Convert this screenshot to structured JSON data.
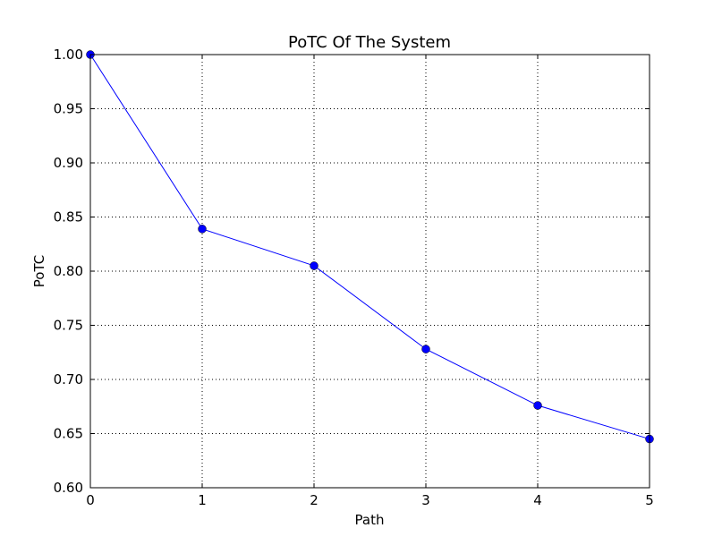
{
  "chart_data": {
    "type": "line",
    "title": "PoTC Of The System",
    "xlabel": "Path",
    "ylabel": "PoTC",
    "xlim": [
      0,
      5
    ],
    "ylim": [
      0.6,
      1.0
    ],
    "x_ticks": [
      "0",
      "1",
      "2",
      "3",
      "4",
      "5"
    ],
    "y_ticks": [
      "0.60",
      "0.65",
      "0.70",
      "0.75",
      "0.80",
      "0.85",
      "0.90",
      "0.95",
      "1.00"
    ],
    "grid": true,
    "legend": "none",
    "series": [
      {
        "x": [
          0,
          1,
          2,
          3,
          4,
          5
        ],
        "values": [
          1.0,
          0.839,
          0.805,
          0.728,
          0.676,
          0.645
        ],
        "color": "#0000ff",
        "marker": "circle"
      }
    ]
  }
}
